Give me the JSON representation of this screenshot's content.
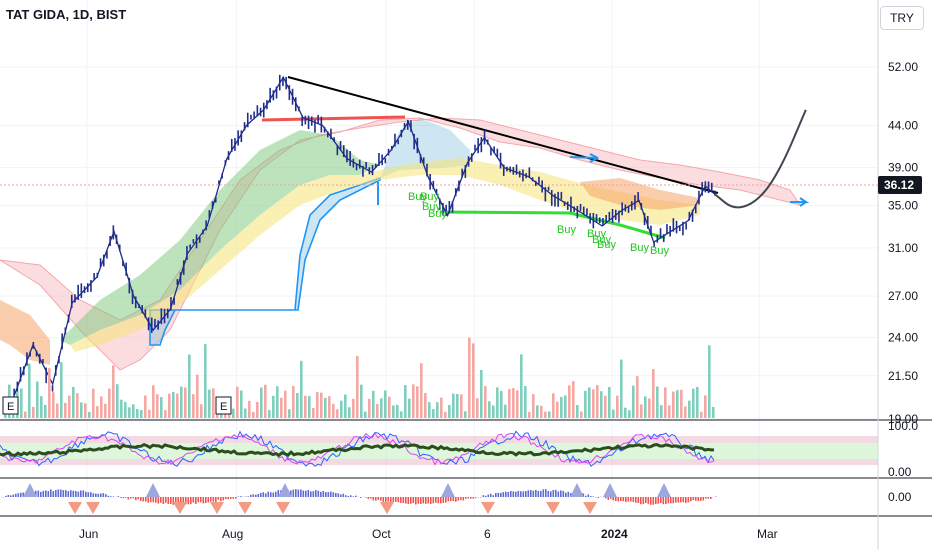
{
  "header": {
    "title": "TAT GIDA, 1D, BIST",
    "currency_button": "TRY"
  },
  "price_axis": {
    "ticks": [
      "52.00",
      "44.00",
      "39.00",
      "35.00",
      "31.00",
      "27.00",
      "24.00",
      "21.50",
      "19.00"
    ],
    "last_price": "36.12"
  },
  "rsi_axis": {
    "ticks": [
      "100.0",
      "0.00"
    ]
  },
  "macd_axis": {
    "ticks": [
      "0.00"
    ]
  },
  "time_axis": {
    "ticks": [
      "Jun",
      "Aug",
      "Oct",
      "6",
      "2024",
      "Mar"
    ]
  },
  "signals": {
    "buy_label": "Buy",
    "earnings_label": "E"
  },
  "colors": {
    "bull": "#26a69a",
    "bear": "#ef5350",
    "candle": "#1f2d8a",
    "trend": "#000000",
    "support": "#33dd33",
    "resistance": "#ef5350",
    "last_price": "#131722"
  },
  "chart_data": {
    "type": "candlestick",
    "title": "TAT GIDA, 1D, BIST",
    "scale": "log",
    "ylim": [
      17.5,
      58
    ],
    "x_ticks": [
      "Jun",
      "Aug",
      "Oct",
      "6",
      "2024",
      "Mar"
    ],
    "y_ticks": [
      52,
      44,
      39,
      35,
      31,
      27,
      24,
      21.5,
      19
    ],
    "last_price": 36.12,
    "price_path": [
      {
        "date": "2023-05-01",
        "close": 19.8
      },
      {
        "date": "2023-05-10",
        "close": 23.5
      },
      {
        "date": "2023-05-18",
        "close": 21.0
      },
      {
        "date": "2023-05-26",
        "close": 26.5
      },
      {
        "date": "2023-06-05",
        "close": 28.5
      },
      {
        "date": "2023-06-12",
        "close": 32.5
      },
      {
        "date": "2023-06-20",
        "close": 27.0
      },
      {
        "date": "2023-06-28",
        "close": 24.5
      },
      {
        "date": "2023-07-05",
        "close": 26.0
      },
      {
        "date": "2023-07-12",
        "close": 30.5
      },
      {
        "date": "2023-07-20",
        "close": 33.0
      },
      {
        "date": "2023-07-28",
        "close": 40.0
      },
      {
        "date": "2023-08-05",
        "close": 44.0
      },
      {
        "date": "2023-08-12",
        "close": 46.0
      },
      {
        "date": "2023-08-20",
        "close": 50.5
      },
      {
        "date": "2023-08-28",
        "close": 45.0
      },
      {
        "date": "2023-09-05",
        "close": 44.0
      },
      {
        "date": "2023-09-15",
        "close": 40.0
      },
      {
        "date": "2023-09-25",
        "close": 38.5
      },
      {
        "date": "2023-10-03",
        "close": 41.0
      },
      {
        "date": "2023-10-10",
        "close": 44.5
      },
      {
        "date": "2023-10-18",
        "close": 38.0
      },
      {
        "date": "2023-10-26",
        "close": 34.0
      },
      {
        "date": "2023-11-03",
        "close": 39.5
      },
      {
        "date": "2023-11-10",
        "close": 42.5
      },
      {
        "date": "2023-11-18",
        "close": 39.0
      },
      {
        "date": "2023-11-28",
        "close": 38.0
      },
      {
        "date": "2023-12-08",
        "close": 36.0
      },
      {
        "date": "2023-12-18",
        "close": 34.5
      },
      {
        "date": "2023-12-28",
        "close": 33.0
      },
      {
        "date": "2024-01-05",
        "close": 34.5
      },
      {
        "date": "2024-01-12",
        "close": 35.5
      },
      {
        "date": "2024-01-18",
        "close": 31.5
      },
      {
        "date": "2024-01-25",
        "close": 32.5
      },
      {
        "date": "2024-02-01",
        "close": 33.5
      },
      {
        "date": "2024-02-08",
        "close": 37.0
      },
      {
        "date": "2024-02-12",
        "close": 36.12
      }
    ],
    "projection_path": [
      {
        "date": "2024-02-12",
        "close": 36.12
      },
      {
        "date": "2024-02-20",
        "close": 34.5
      },
      {
        "date": "2024-03-01",
        "close": 35.5
      },
      {
        "date": "2024-03-10",
        "close": 39.0
      },
      {
        "date": "2024-03-20",
        "close": 46.0
      }
    ],
    "annotations": [
      "Buy",
      "Buy",
      "Buy",
      "Buy",
      "Buy",
      "Buy",
      "Buy",
      "Buy",
      "Buy",
      "Buy"
    ],
    "earnings_markers": [
      "E",
      "E"
    ],
    "rsi_levels": [
      100,
      0
    ],
    "macd_zero": 0
  }
}
